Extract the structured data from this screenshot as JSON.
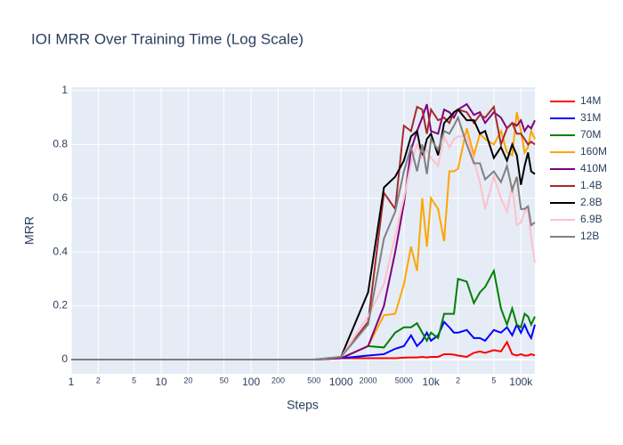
{
  "chart_data": {
    "type": "line",
    "title": "IOI MRR Over Training Time (Log Scale)",
    "x_label": "Steps",
    "y_label": "MRR",
    "xscale": "log",
    "grid": true,
    "legend_position": "right",
    "x": [
      1,
      2,
      4,
      8,
      16,
      32,
      64,
      128,
      256,
      512,
      1000,
      2000,
      3000,
      4000,
      5000,
      6000,
      7000,
      8000,
      9000,
      10000,
      12000,
      14000,
      16000,
      18000,
      20000,
      25000,
      30000,
      35000,
      40000,
      50000,
      60000,
      70000,
      80000,
      90000,
      100000,
      110000,
      120000,
      130000,
      143000
    ],
    "xlim": [
      1,
      143000
    ],
    "ylim": [
      -0.053,
      1.013
    ],
    "xticks": [
      1,
      2,
      5,
      10,
      20,
      50,
      100,
      200,
      500,
      1000,
      2000,
      5000,
      {
        "value": 10000,
        "label": "10k"
      },
      {
        "value": 20000,
        "label": "2"
      },
      {
        "value": 50000,
        "label": "5"
      },
      {
        "value": 100000,
        "label": "100k"
      }
    ],
    "yticks": [
      0,
      0.2,
      0.4,
      0.6,
      0.8,
      1
    ],
    "series": [
      {
        "name": "14M",
        "color": "#ff0000",
        "values": [
          0,
          0,
          0,
          0,
          0,
          0,
          0,
          0,
          0,
          0,
          0.005,
          0.005,
          0.005,
          0.005,
          0.007,
          0.008,
          0.008,
          0.01,
          0.008,
          0.01,
          0.01,
          0.02,
          0.02,
          0.018,
          0.015,
          0.01,
          0.025,
          0.03,
          0.025,
          0.035,
          0.03,
          0.065,
          0.02,
          0.015,
          0.02,
          0.015,
          0.015,
          0.02,
          0.015
        ]
      },
      {
        "name": "31M",
        "color": "#0000ff",
        "values": [
          0,
          0,
          0,
          0,
          0,
          0,
          0,
          0,
          0,
          0,
          0.005,
          0.015,
          0.02,
          0.04,
          0.05,
          0.09,
          0.05,
          0.07,
          0.1,
          0.07,
          0.09,
          0.14,
          0.12,
          0.1,
          0.1,
          0.11,
          0.08,
          0.08,
          0.07,
          0.11,
          0.1,
          0.12,
          0.09,
          0.13,
          0.1,
          0.13,
          0.1,
          0.08,
          0.13
        ]
      },
      {
        "name": "70M",
        "color": "#008000",
        "values": [
          0,
          0,
          0,
          0,
          0,
          0,
          0,
          0,
          0,
          0,
          0.005,
          0.05,
          0.045,
          0.1,
          0.12,
          0.12,
          0.135,
          0.1,
          0.07,
          0.1,
          0.08,
          0.17,
          0.17,
          0.17,
          0.3,
          0.29,
          0.21,
          0.25,
          0.27,
          0.33,
          0.19,
          0.13,
          0.19,
          0.13,
          0.12,
          0.17,
          0.16,
          0.13,
          0.16
        ]
      },
      {
        "name": "160M",
        "color": "#ffa500",
        "values": [
          0,
          0,
          0,
          0,
          0,
          0,
          0,
          0,
          0,
          0,
          0.005,
          0.05,
          0.165,
          0.17,
          0.28,
          0.42,
          0.33,
          0.6,
          0.42,
          0.6,
          0.56,
          0.44,
          0.7,
          0.7,
          0.71,
          0.86,
          0.76,
          0.84,
          0.82,
          0.8,
          0.85,
          0.77,
          0.76,
          0.92,
          0.85,
          0.77,
          0.79,
          0.85,
          0.82
        ]
      },
      {
        "name": "410M",
        "color": "#800080",
        "values": [
          0,
          0,
          0,
          0,
          0,
          0,
          0,
          0,
          0,
          0,
          0.005,
          0.05,
          0.2,
          0.4,
          0.58,
          0.78,
          0.85,
          0.9,
          0.95,
          0.85,
          0.84,
          0.93,
          0.92,
          0.9,
          0.93,
          0.95,
          0.91,
          0.92,
          0.88,
          0.92,
          0.9,
          0.86,
          0.88,
          0.87,
          0.89,
          0.85,
          0.87,
          0.86,
          0.89
        ]
      },
      {
        "name": "1.4B",
        "color": "#a52a2a",
        "values": [
          0,
          0,
          0,
          0,
          0,
          0,
          0,
          0,
          0,
          0,
          0.01,
          0.14,
          0.62,
          0.56,
          0.87,
          0.85,
          0.94,
          0.93,
          0.84,
          0.93,
          0.89,
          0.9,
          0.88,
          0.92,
          0.93,
          0.92,
          0.88,
          0.91,
          0.9,
          0.94,
          0.8,
          0.86,
          0.88,
          0.84,
          0.84,
          0.82,
          0.8,
          0.81,
          0.8
        ]
      },
      {
        "name": "2.8B",
        "color": "#000000",
        "values": [
          0,
          0,
          0,
          0,
          0,
          0,
          0,
          0,
          0,
          0,
          0.01,
          0.25,
          0.64,
          0.68,
          0.74,
          0.83,
          0.85,
          0.75,
          0.82,
          0.84,
          0.76,
          0.88,
          0.9,
          0.92,
          0.93,
          0.89,
          0.89,
          0.84,
          0.85,
          0.75,
          0.79,
          0.74,
          0.8,
          0.76,
          0.65,
          0.72,
          0.77,
          0.7,
          0.69
        ]
      },
      {
        "name": "6.9B",
        "color": "#ffc0cb",
        "values": [
          0,
          0,
          0,
          0,
          0,
          0,
          0,
          0,
          0,
          0,
          0.01,
          0.16,
          0.28,
          0.46,
          0.6,
          0.73,
          0.8,
          0.75,
          0.78,
          0.75,
          0.72,
          0.83,
          0.79,
          0.82,
          0.83,
          0.83,
          0.74,
          0.66,
          0.56,
          0.68,
          0.6,
          0.55,
          0.65,
          0.5,
          0.51,
          0.55,
          0.56,
          0.45,
          0.36
        ]
      },
      {
        "name": "12B",
        "color": "#808080",
        "values": [
          0,
          0,
          0,
          0,
          0,
          0,
          0,
          0,
          0,
          0,
          0.01,
          0.13,
          0.45,
          0.55,
          0.7,
          0.79,
          0.7,
          0.8,
          0.69,
          0.82,
          0.78,
          0.85,
          0.84,
          0.87,
          0.9,
          0.8,
          0.73,
          0.73,
          0.67,
          0.7,
          0.66,
          0.72,
          0.63,
          0.68,
          0.56,
          0.56,
          0.57,
          0.5,
          0.51
        ]
      }
    ]
  }
}
